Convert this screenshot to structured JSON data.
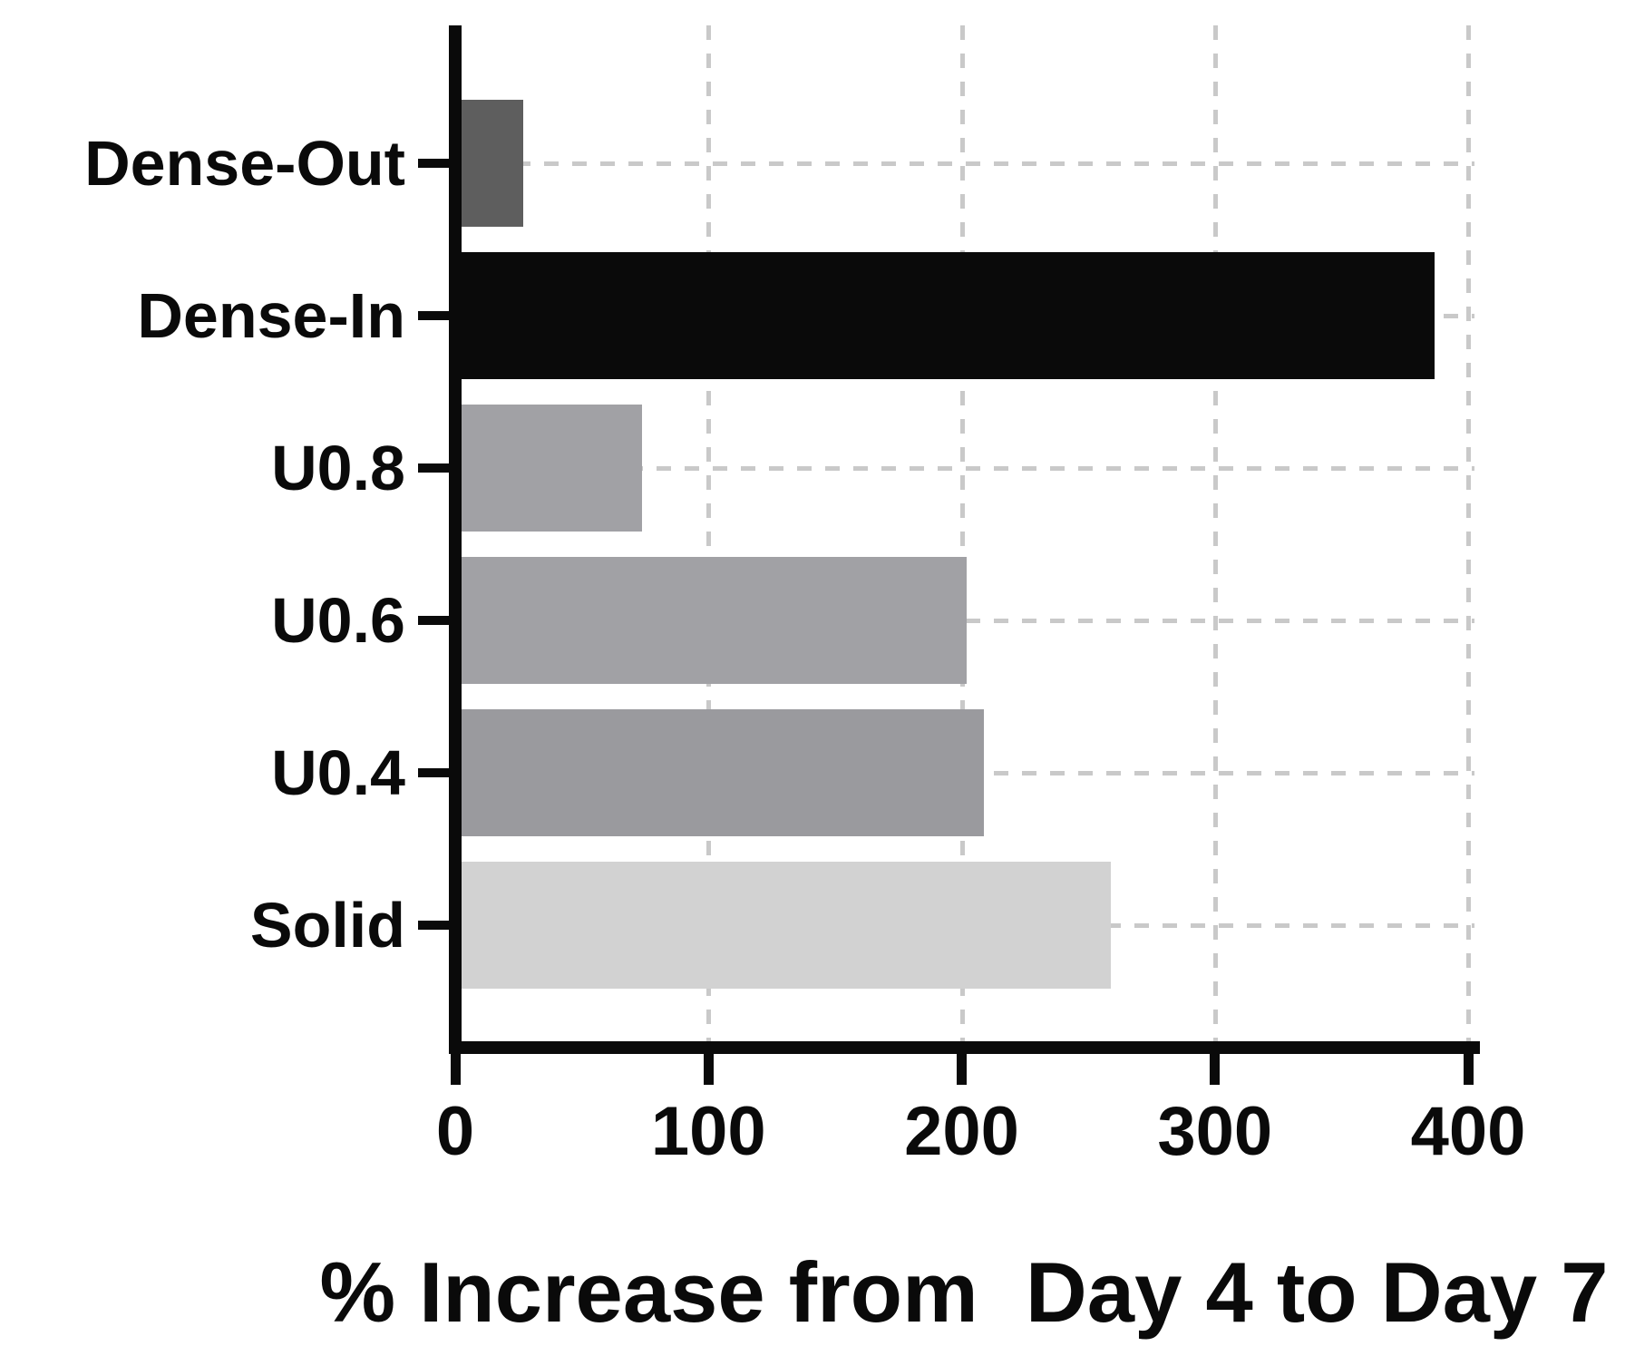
{
  "chart_data": {
    "type": "bar",
    "orientation": "horizontal",
    "title": "",
    "xlabel": "% Increase from  Day 4 to Day 7",
    "ylabel": "",
    "categories": [
      "Dense-Out",
      "Dense-In",
      "U0.8",
      "U0.6",
      "U0.4",
      "Solid"
    ],
    "values": [
      25,
      385,
      72,
      200,
      207,
      257
    ],
    "bar_colors": [
      "#5e5e5e",
      "#0a0a0a",
      "#a1a1a5",
      "#a1a1a5",
      "#9a9a9e",
      "#d2d2d2"
    ],
    "xlim": [
      0,
      400
    ],
    "x_ticks": [
      0,
      100,
      200,
      300,
      400
    ],
    "x_tick_labels": [
      "0",
      "100",
      "200",
      "300",
      "400"
    ],
    "grid": {
      "vertical": true,
      "horizontal": true,
      "style": "dashed",
      "color": "#c9c9c9"
    },
    "legend": null,
    "axis_color": "#0a0a0a",
    "text_color": "#0a0a0a",
    "background_color": "#ffffff"
  }
}
